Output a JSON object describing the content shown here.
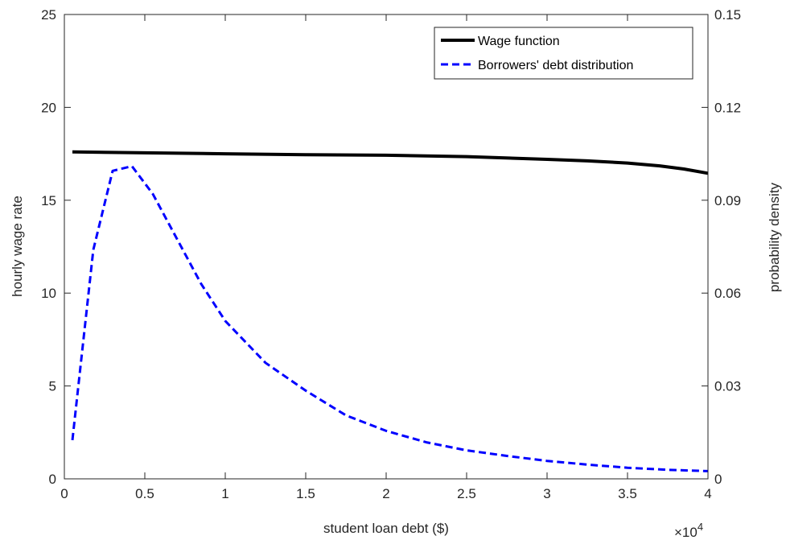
{
  "chart_data": {
    "type": "line",
    "xlabel": "student loan debt ($)",
    "ylabel_left": "hourly wage rate",
    "ylabel_right": "probability density",
    "x_exponent_base": "×10",
    "x_exponent_power": "4",
    "xlim": [
      0,
      4
    ],
    "ylim_left": [
      0,
      25
    ],
    "ylim_right": [
      0,
      0.15
    ],
    "x_ticks": [
      "0",
      "0.5",
      "1",
      "1.5",
      "2",
      "2.5",
      "3",
      "3.5",
      "4"
    ],
    "y_left_ticks": [
      "0",
      "5",
      "10",
      "15",
      "20",
      "25"
    ],
    "y_right_ticks": [
      "0",
      "0.03",
      "0.06",
      "0.09",
      "0.12",
      "0.15"
    ],
    "legend_position": "top-right",
    "grid": false,
    "series": [
      {
        "name": "Wage function",
        "axis": "left",
        "color": "#000000",
        "style": "solid",
        "x": [
          0.05,
          0.5,
          1.0,
          1.5,
          2.0,
          2.5,
          3.0,
          3.25,
          3.5,
          3.7,
          3.85,
          4.0
        ],
        "y": [
          17.6,
          17.55,
          17.5,
          17.45,
          17.42,
          17.35,
          17.2,
          17.12,
          17.0,
          16.85,
          16.68,
          16.45
        ]
      },
      {
        "name": "Borrowers' debt distribution",
        "axis": "right",
        "color": "#0000ff",
        "style": "dashed",
        "x": [
          0.05,
          0.18,
          0.3,
          0.42,
          0.55,
          0.7,
          0.85,
          1.0,
          1.25,
          1.5,
          1.75,
          2.0,
          2.25,
          2.5,
          2.75,
          3.0,
          3.25,
          3.5,
          3.75,
          4.0
        ],
        "y": [
          0.0125,
          0.074,
          0.0995,
          0.101,
          0.092,
          0.0775,
          0.063,
          0.051,
          0.0375,
          0.0285,
          0.0205,
          0.0155,
          0.0118,
          0.0092,
          0.0074,
          0.0058,
          0.0046,
          0.0036,
          0.0029,
          0.0025
        ]
      }
    ]
  }
}
